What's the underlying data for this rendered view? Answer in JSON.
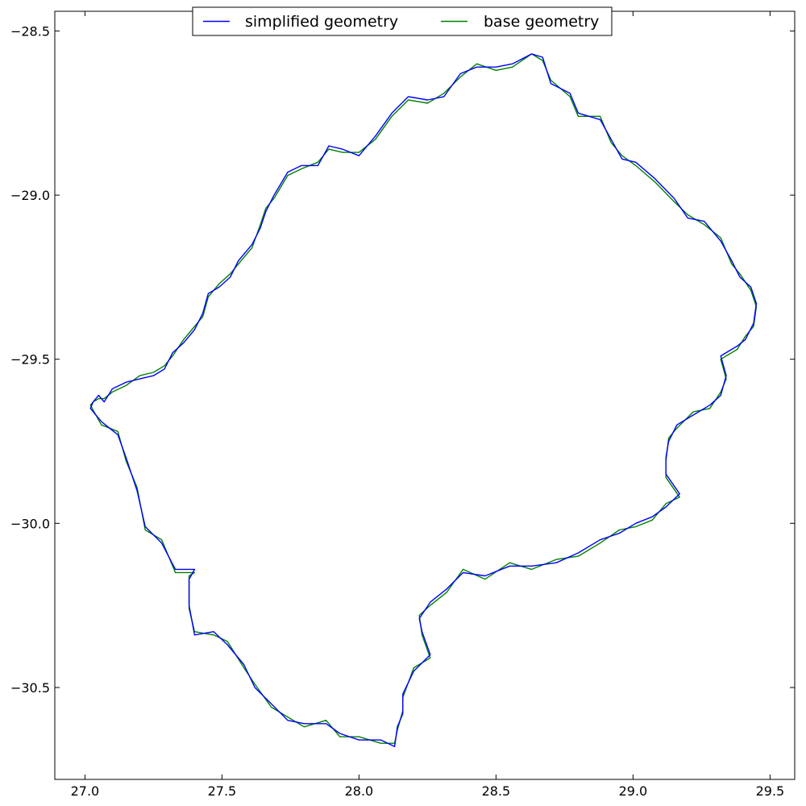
{
  "chart_data": {
    "type": "line",
    "title": "",
    "xlabel": "",
    "ylabel": "",
    "xlim": [
      26.89,
      29.59
    ],
    "ylim": [
      -30.78,
      -28.44
    ],
    "xticks": [
      {
        "value": 27.0,
        "label": "27.0"
      },
      {
        "value": 27.5,
        "label": "27.5"
      },
      {
        "value": 28.0,
        "label": "28.0"
      },
      {
        "value": 28.5,
        "label": "28.5"
      },
      {
        "value": 29.0,
        "label": "29.0"
      },
      {
        "value": 29.5,
        "label": "29.5"
      }
    ],
    "yticks": [
      {
        "value": -28.5,
        "label": "−28.5"
      },
      {
        "value": -29.0,
        "label": "−29.0"
      },
      {
        "value": -29.5,
        "label": "−29.5"
      },
      {
        "value": -30.0,
        "label": "−30.0"
      },
      {
        "value": -30.5,
        "label": "−30.5"
      }
    ],
    "grid": false,
    "legend": {
      "placement": "top-center",
      "columns": 2
    },
    "series": [
      {
        "name": "simplified geometry",
        "color": "#0000ff",
        "points": [
          [
            27.03,
            -29.63
          ],
          [
            27.05,
            -29.61
          ],
          [
            27.07,
            -29.63
          ],
          [
            27.1,
            -29.59
          ],
          [
            27.15,
            -29.57
          ],
          [
            27.2,
            -29.56
          ],
          [
            27.25,
            -29.55
          ],
          [
            27.29,
            -29.53
          ],
          [
            27.32,
            -29.48
          ],
          [
            27.36,
            -29.45
          ],
          [
            27.4,
            -29.41
          ],
          [
            27.43,
            -29.36
          ],
          [
            27.45,
            -29.3
          ],
          [
            27.49,
            -29.28
          ],
          [
            27.53,
            -29.25
          ],
          [
            27.56,
            -29.2
          ],
          [
            27.61,
            -29.15
          ],
          [
            27.64,
            -29.1
          ],
          [
            27.66,
            -29.05
          ],
          [
            27.69,
            -29.0
          ],
          [
            27.74,
            -28.93
          ],
          [
            27.79,
            -28.91
          ],
          [
            27.85,
            -28.91
          ],
          [
            27.89,
            -28.85
          ],
          [
            27.94,
            -28.86
          ],
          [
            28.0,
            -28.88
          ],
          [
            28.06,
            -28.82
          ],
          [
            28.12,
            -28.75
          ],
          [
            28.18,
            -28.7
          ],
          [
            28.25,
            -28.71
          ],
          [
            28.31,
            -28.7
          ],
          [
            28.37,
            -28.63
          ],
          [
            28.43,
            -28.61
          ],
          [
            28.5,
            -28.61
          ],
          [
            28.56,
            -28.6
          ],
          [
            28.63,
            -28.57
          ],
          [
            28.67,
            -28.58
          ],
          [
            28.7,
            -28.66
          ],
          [
            28.77,
            -28.69
          ],
          [
            28.8,
            -28.75
          ],
          [
            28.88,
            -28.77
          ],
          [
            28.92,
            -28.83
          ],
          [
            28.96,
            -28.89
          ],
          [
            29.01,
            -28.9
          ],
          [
            29.08,
            -28.95
          ],
          [
            29.15,
            -29.01
          ],
          [
            29.2,
            -29.07
          ],
          [
            29.26,
            -29.08
          ],
          [
            29.32,
            -29.14
          ],
          [
            29.36,
            -29.2
          ],
          [
            29.39,
            -29.25
          ],
          [
            29.43,
            -29.28
          ],
          [
            29.45,
            -29.33
          ],
          [
            29.44,
            -29.39
          ],
          [
            29.41,
            -29.44
          ],
          [
            29.38,
            -29.46
          ],
          [
            29.32,
            -29.49
          ],
          [
            29.34,
            -29.55
          ],
          [
            29.32,
            -29.61
          ],
          [
            29.28,
            -29.64
          ],
          [
            29.22,
            -29.67
          ],
          [
            29.16,
            -29.7
          ],
          [
            29.13,
            -29.75
          ],
          [
            29.12,
            -29.8
          ],
          [
            29.12,
            -29.85
          ],
          [
            29.17,
            -29.91
          ],
          [
            29.12,
            -29.95
          ],
          [
            29.07,
            -29.98
          ],
          [
            29.01,
            -30.0
          ],
          [
            28.95,
            -30.03
          ],
          [
            28.88,
            -30.05
          ],
          [
            28.8,
            -30.09
          ],
          [
            28.72,
            -30.12
          ],
          [
            28.63,
            -30.13
          ],
          [
            28.55,
            -30.13
          ],
          [
            28.46,
            -30.16
          ],
          [
            28.38,
            -30.15
          ],
          [
            28.32,
            -30.2
          ],
          [
            28.26,
            -30.24
          ],
          [
            28.22,
            -30.29
          ],
          [
            28.23,
            -30.33
          ],
          [
            28.26,
            -30.4
          ],
          [
            28.2,
            -30.45
          ],
          [
            28.16,
            -30.52
          ],
          [
            28.16,
            -30.58
          ],
          [
            28.14,
            -30.62
          ],
          [
            28.13,
            -30.68
          ],
          [
            28.08,
            -30.66
          ],
          [
            28.0,
            -30.66
          ],
          [
            27.93,
            -30.64
          ],
          [
            27.88,
            -30.61
          ],
          [
            27.8,
            -30.61
          ],
          [
            27.74,
            -30.6
          ],
          [
            27.68,
            -30.55
          ],
          [
            27.62,
            -30.5
          ],
          [
            27.58,
            -30.43
          ],
          [
            27.52,
            -30.37
          ],
          [
            27.47,
            -30.33
          ],
          [
            27.4,
            -30.34
          ],
          [
            27.38,
            -30.25
          ],
          [
            27.38,
            -30.17
          ],
          [
            27.4,
            -30.14
          ],
          [
            27.33,
            -30.14
          ],
          [
            27.28,
            -30.06
          ],
          [
            27.22,
            -30.01
          ],
          [
            27.19,
            -29.9
          ],
          [
            27.15,
            -29.8
          ],
          [
            27.12,
            -29.73
          ],
          [
            27.06,
            -29.69
          ],
          [
            27.02,
            -29.65
          ],
          [
            27.03,
            -29.63
          ]
        ]
      },
      {
        "name": "base geometry",
        "color": "#008000",
        "points": [
          [
            27.03,
            -29.63
          ],
          [
            27.05,
            -29.62
          ],
          [
            27.07,
            -29.62
          ],
          [
            27.1,
            -29.6
          ],
          [
            27.15,
            -29.58
          ],
          [
            27.2,
            -29.55
          ],
          [
            27.25,
            -29.54
          ],
          [
            27.29,
            -29.52
          ],
          [
            27.32,
            -29.49
          ],
          [
            27.36,
            -29.44
          ],
          [
            27.4,
            -29.4
          ],
          [
            27.43,
            -29.37
          ],
          [
            27.45,
            -29.31
          ],
          [
            27.49,
            -29.27
          ],
          [
            27.53,
            -29.24
          ],
          [
            27.56,
            -29.21
          ],
          [
            27.61,
            -29.16
          ],
          [
            27.64,
            -29.09
          ],
          [
            27.66,
            -29.04
          ],
          [
            27.69,
            -29.01
          ],
          [
            27.74,
            -28.94
          ],
          [
            27.79,
            -28.92
          ],
          [
            27.85,
            -28.9
          ],
          [
            27.89,
            -28.86
          ],
          [
            27.94,
            -28.87
          ],
          [
            28.0,
            -28.87
          ],
          [
            28.06,
            -28.83
          ],
          [
            28.12,
            -28.76
          ],
          [
            28.18,
            -28.71
          ],
          [
            28.25,
            -28.72
          ],
          [
            28.31,
            -28.69
          ],
          [
            28.37,
            -28.64
          ],
          [
            28.43,
            -28.6
          ],
          [
            28.5,
            -28.62
          ],
          [
            28.56,
            -28.61
          ],
          [
            28.63,
            -28.57
          ],
          [
            28.67,
            -28.59
          ],
          [
            28.7,
            -28.65
          ],
          [
            28.77,
            -28.7
          ],
          [
            28.8,
            -28.76
          ],
          [
            28.88,
            -28.76
          ],
          [
            28.92,
            -28.84
          ],
          [
            28.96,
            -28.88
          ],
          [
            29.01,
            -28.91
          ],
          [
            29.08,
            -28.96
          ],
          [
            29.15,
            -29.02
          ],
          [
            29.2,
            -29.06
          ],
          [
            29.26,
            -29.09
          ],
          [
            29.32,
            -29.13
          ],
          [
            29.36,
            -29.21
          ],
          [
            29.39,
            -29.24
          ],
          [
            29.43,
            -29.29
          ],
          [
            29.45,
            -29.34
          ],
          [
            29.44,
            -29.4
          ],
          [
            29.41,
            -29.43
          ],
          [
            29.38,
            -29.47
          ],
          [
            29.32,
            -29.5
          ],
          [
            29.34,
            -29.56
          ],
          [
            29.32,
            -29.6
          ],
          [
            29.28,
            -29.65
          ],
          [
            29.22,
            -29.66
          ],
          [
            29.16,
            -29.71
          ],
          [
            29.13,
            -29.74
          ],
          [
            29.12,
            -29.81
          ],
          [
            29.12,
            -29.86
          ],
          [
            29.17,
            -29.92
          ],
          [
            29.12,
            -29.94
          ],
          [
            29.07,
            -29.99
          ],
          [
            29.01,
            -30.01
          ],
          [
            28.95,
            -30.02
          ],
          [
            28.88,
            -30.06
          ],
          [
            28.8,
            -30.1
          ],
          [
            28.72,
            -30.11
          ],
          [
            28.63,
            -30.14
          ],
          [
            28.55,
            -30.12
          ],
          [
            28.46,
            -30.17
          ],
          [
            28.38,
            -30.14
          ],
          [
            28.32,
            -30.21
          ],
          [
            28.26,
            -30.25
          ],
          [
            28.22,
            -30.28
          ],
          [
            28.23,
            -30.34
          ],
          [
            28.26,
            -30.41
          ],
          [
            28.2,
            -30.44
          ],
          [
            28.16,
            -30.53
          ],
          [
            28.16,
            -30.57
          ],
          [
            28.14,
            -30.63
          ],
          [
            28.13,
            -30.67
          ],
          [
            28.08,
            -30.67
          ],
          [
            28.0,
            -30.65
          ],
          [
            27.93,
            -30.65
          ],
          [
            27.88,
            -30.6
          ],
          [
            27.8,
            -30.62
          ],
          [
            27.74,
            -30.59
          ],
          [
            27.68,
            -30.56
          ],
          [
            27.62,
            -30.49
          ],
          [
            27.58,
            -30.44
          ],
          [
            27.52,
            -30.36
          ],
          [
            27.47,
            -30.34
          ],
          [
            27.4,
            -30.33
          ],
          [
            27.38,
            -30.26
          ],
          [
            27.38,
            -30.16
          ],
          [
            27.4,
            -30.15
          ],
          [
            27.33,
            -30.15
          ],
          [
            27.28,
            -30.05
          ],
          [
            27.22,
            -30.02
          ],
          [
            27.19,
            -29.89
          ],
          [
            27.15,
            -29.81
          ],
          [
            27.12,
            -29.72
          ],
          [
            27.06,
            -29.7
          ],
          [
            27.02,
            -29.64
          ],
          [
            27.03,
            -29.63
          ]
        ]
      }
    ]
  }
}
